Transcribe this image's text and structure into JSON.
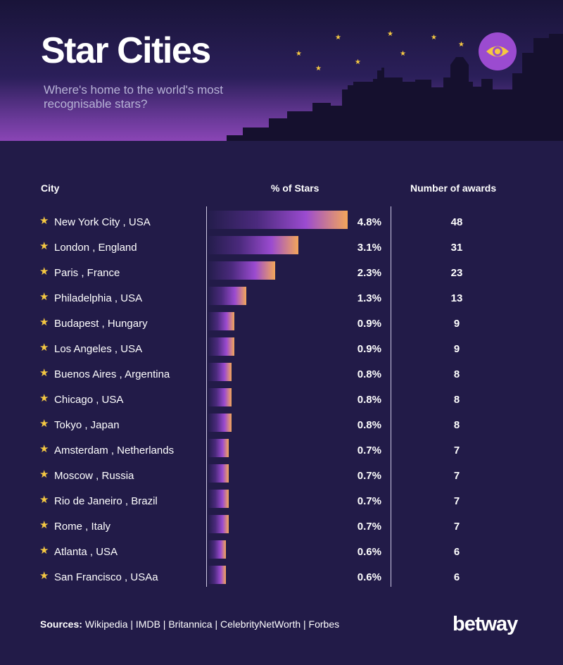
{
  "header": {
    "title": "Star Cities",
    "subtitle": "Where's home to the world's most recognisable stars?"
  },
  "columns": {
    "city": "City",
    "pct": "% of Stars",
    "awards": "Number of awards"
  },
  "chart_data": {
    "type": "bar",
    "orientation": "horizontal",
    "categories": [
      "New York City , USA",
      "London , England",
      "Paris , France",
      "Philadelphia , USA",
      "Budapest , Hungary",
      "Los Angeles , USA",
      "Buenos Aires , Argentina",
      "Chicago , USA",
      "Tokyo , Japan",
      "Amsterdam , Netherlands",
      "Moscow , Russia",
      "Rio de Janeiro , Brazil",
      "Rome , Italy",
      "Atlanta , USA",
      "San Francisco , USAa"
    ],
    "values": [
      4.8,
      3.1,
      2.3,
      1.3,
      0.9,
      0.9,
      0.8,
      0.8,
      0.8,
      0.7,
      0.7,
      0.7,
      0.7,
      0.6,
      0.6
    ],
    "value_labels": [
      "4.8%",
      "3.1%",
      "2.3%",
      "1.3%",
      "0.9%",
      "0.9%",
      "0.8%",
      "0.8%",
      "0.8%",
      "0.7%",
      "0.7%",
      "0.7%",
      "0.7%",
      "0.6%",
      "0.6%"
    ],
    "awards": [
      "48",
      "31",
      "23",
      "13",
      "9",
      "9",
      "8",
      "8",
      "8",
      "7",
      "7",
      "7",
      "7",
      "6",
      "6"
    ],
    "xlim": [
      0,
      4.8
    ],
    "grid": false,
    "colors": {
      "bar_start": "#241d4c",
      "bar_mid": "#9b4bd0",
      "bar_end": "#f3a65a",
      "star": "#f5c842"
    }
  },
  "footer": {
    "sources_label": "Sources:",
    "sources_text": "Wikipedia | IMDB | Britannica | CelebrityNetWorth | Forbes",
    "brand": "betway"
  },
  "icons": {
    "badge": "eye-icon",
    "row_marker": "star-icon"
  },
  "theme": {
    "background": "#221b48",
    "accent": "#9b4bd0",
    "star": "#f5c842"
  }
}
